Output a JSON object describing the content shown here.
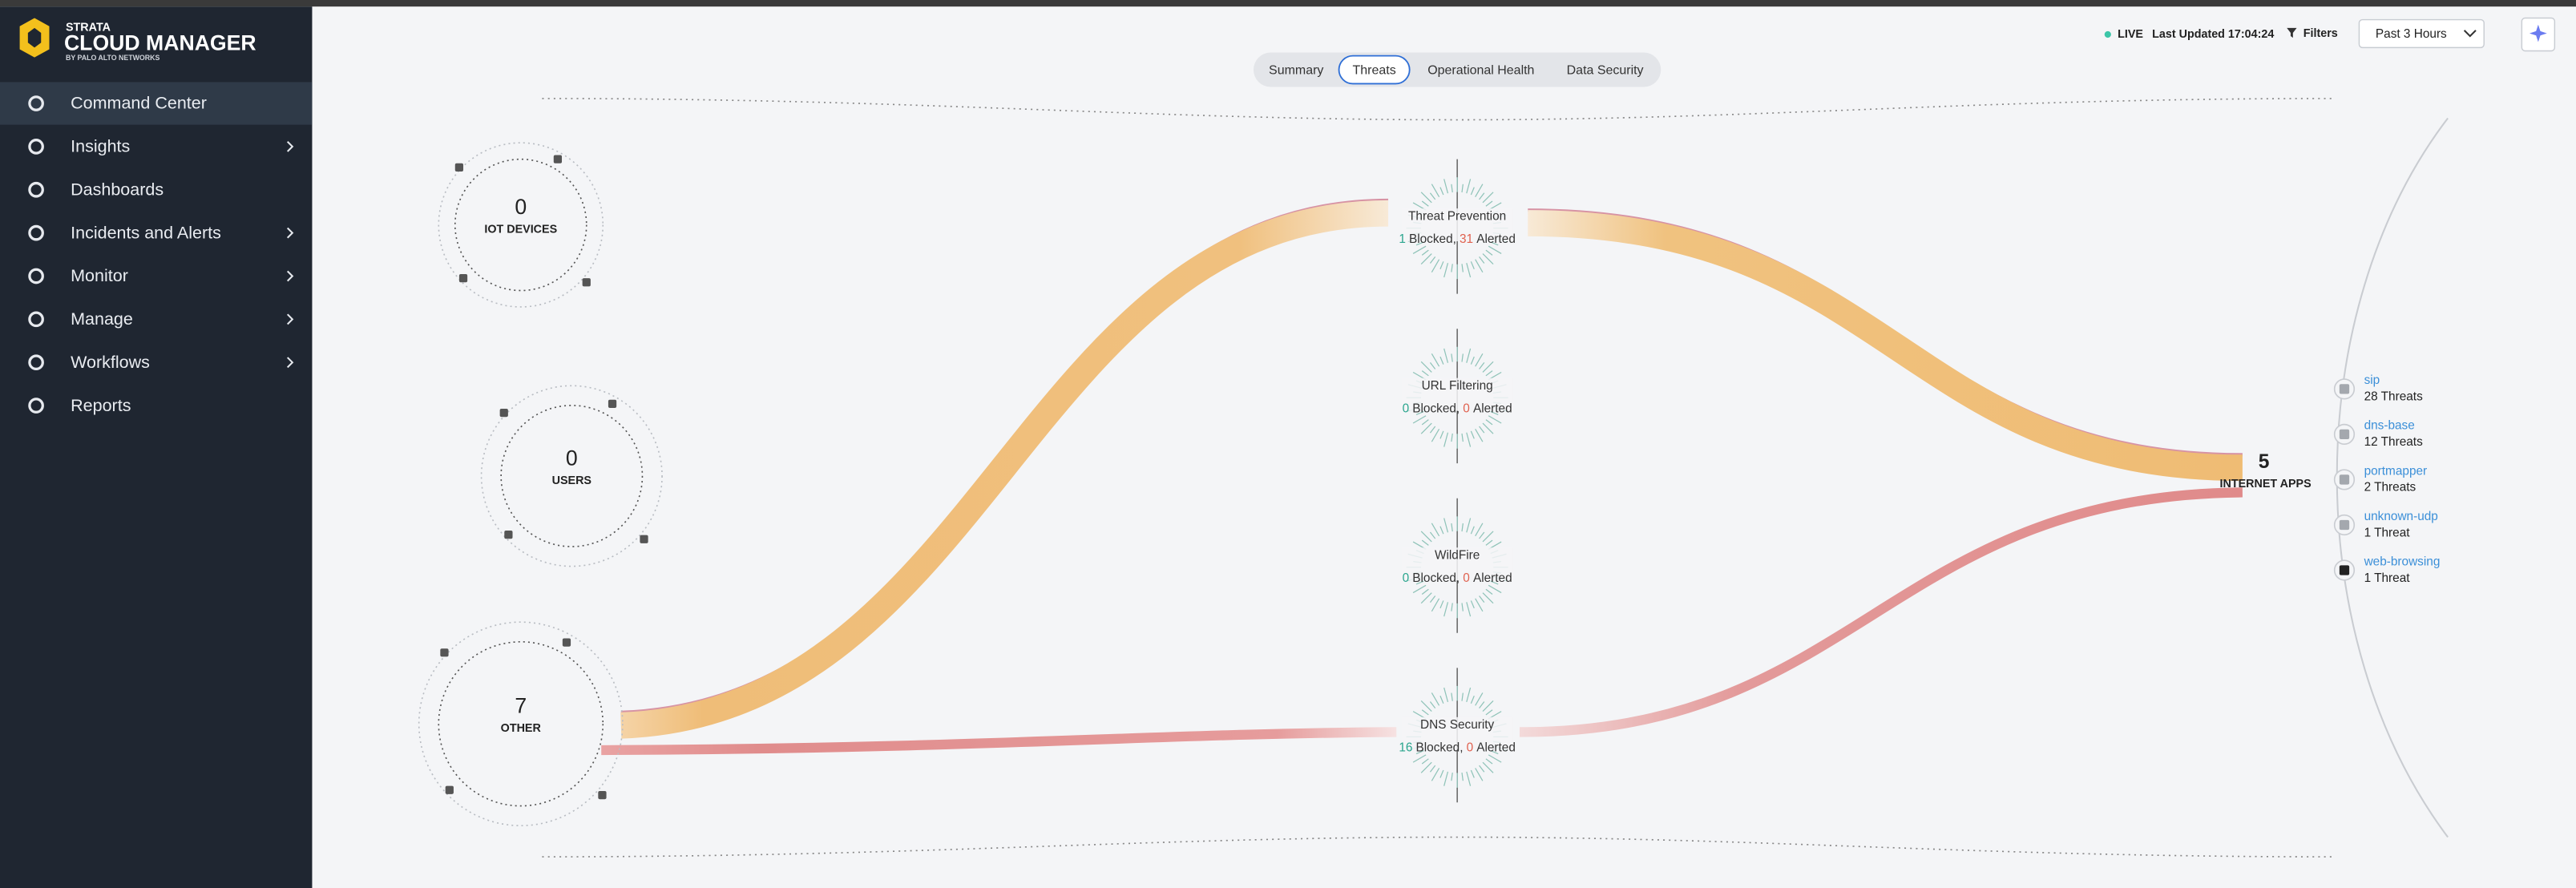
{
  "sidebar": {
    "brand_top": "STRATA",
    "brand": "CLOUD MANAGER",
    "brand_sub": "BY PALO ALTO NETWORKS",
    "nav": [
      {
        "label": "Command Center",
        "active": true
      },
      {
        "label": "Insights",
        "submenu": true
      },
      {
        "label": "Dashboards"
      },
      {
        "label": "Incidents and Alerts",
        "submenu": true
      },
      {
        "label": "Monitor",
        "submenu": true
      },
      {
        "label": "Manage",
        "submenu": true
      },
      {
        "label": "Workflows",
        "submenu": true
      },
      {
        "label": "Reports"
      }
    ]
  },
  "header": {
    "tabs": [
      "Summary",
      "Threats",
      "Operational Health",
      "Data Security"
    ],
    "selected_tab": 1,
    "live": "LIVE",
    "last_updated": "Last Updated 17:04:24",
    "filters": "Filters",
    "time_range": "Past 3 Hours"
  },
  "sources": [
    {
      "count": 0,
      "label": "IOT DEVICES"
    },
    {
      "count": 0,
      "label": "USERS"
    },
    {
      "count": 7,
      "label": "OTHER"
    }
  ],
  "service_labels": {
    "blocked": "Blocked,",
    "alerted": "Alerted"
  },
  "services": [
    {
      "name": "Threat Prevention",
      "blocked": 1,
      "alerted": 31
    },
    {
      "name": "URL Filtering",
      "blocked": 0,
      "alerted": 0
    },
    {
      "name": "WildFire",
      "blocked": 0,
      "alerted": 0
    },
    {
      "name": "DNS Security",
      "blocked": 16,
      "alerted": 0
    }
  ],
  "destination": {
    "count": 5,
    "label": "INTERNET APPS",
    "apps": [
      {
        "name": "sip",
        "threats": "28 Threats"
      },
      {
        "name": "dns-base",
        "threats": "12 Threats"
      },
      {
        "name": "portmapper",
        "threats": "2 Threats"
      },
      {
        "name": "unknown-udp",
        "threats": "1 Threat"
      },
      {
        "name": "web-browsing",
        "threats": "1 Threat"
      }
    ]
  }
}
